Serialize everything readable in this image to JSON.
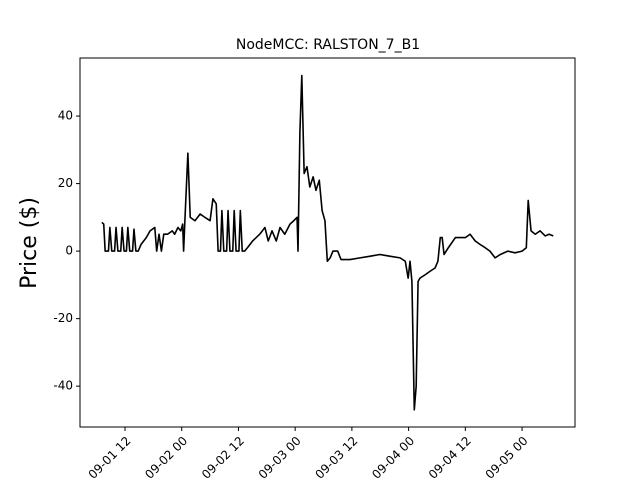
{
  "chart_data": {
    "type": "line",
    "title": "NodeMCC: RALSTON_7_B1",
    "y_label": "Price ($)",
    "color": "#000000",
    "x": [
      7.1,
      7.5,
      7.8,
      8.5,
      8.8,
      9.2,
      9.8,
      10.1,
      10.5,
      11.1,
      11.4,
      11.8,
      12.3,
      12.6,
      13,
      13.6,
      13.9,
      14.3,
      14.8,
      15.4,
      16.5,
      17.3,
      18.3,
      18.7,
      19.2,
      19.7,
      20.2,
      21,
      22,
      22.5,
      23.2,
      23.8,
      24.2,
      24.4,
      24.7,
      25.3,
      25.8,
      26.8,
      27.9,
      28.9,
      30,
      30.6,
      31.3,
      31.7,
      32.2,
      32.5,
      32.9,
      33.5,
      33.8,
      34.2,
      34.8,
      35.1,
      35.5,
      36.1,
      36.4,
      36.8,
      37.3,
      37.9,
      39,
      40.5,
      41.6,
      42.3,
      43.1,
      44,
      44.8,
      45.8,
      46.9,
      47.7,
      48.4,
      48.6,
      49,
      49.4,
      49.9,
      50.5,
      51.1,
      51.8,
      52.4,
      53.1,
      53.7,
      54.3,
      54.8,
      55.4,
      56,
      57,
      57.7,
      59.6,
      61.7,
      63.9,
      65.9,
      68,
      70.2,
      71.3,
      71.9,
      72.3,
      72.7,
      73.2,
      73.6,
      74,
      74.4,
      75.5,
      76.5,
      77.6,
      78.2,
      78.7,
      79.1,
      79.5,
      80.4,
      81.9,
      84,
      85,
      86.1,
      87.1,
      88.2,
      89.2,
      90.3,
      91.4,
      93,
      94.5,
      96,
      96.9,
      97.3,
      97.9,
      98.8,
      99.8,
      100.9,
      101.7,
      102.6
    ],
    "values": [
      8.5,
      8,
      0,
      0,
      7,
      0,
      0,
      7,
      0,
      0,
      7,
      0,
      0,
      7,
      0,
      0,
      6.5,
      0,
      0,
      2,
      4,
      6,
      7,
      0,
      5,
      0,
      5,
      5,
      6,
      5,
      7,
      6,
      8,
      0,
      10,
      29,
      10,
      9,
      11,
      10,
      9,
      15.5,
      14,
      0,
      0,
      12,
      0,
      0,
      12,
      0,
      0,
      12,
      0,
      0,
      12,
      0,
      0,
      1,
      3,
      5,
      7,
      3,
      6,
      3,
      7,
      5,
      8,
      9,
      10,
      0,
      35,
      52,
      23,
      25,
      19,
      22,
      18,
      21,
      12,
      9,
      -3,
      -2,
      0,
      0,
      -2.5,
      -2.5,
      -2,
      -1.5,
      -1,
      -1.5,
      -2,
      -3,
      -8,
      -3,
      -9,
      -47,
      -40,
      -9,
      -8,
      -7,
      -6,
      -5,
      -3,
      4,
      4,
      -1,
      1,
      4,
      4,
      5,
      3,
      2,
      1,
      0,
      -2,
      -1,
      0,
      -0.5,
      0,
      1,
      15,
      6,
      5,
      6,
      4.5,
      5,
      4.5
    ],
    "xlim": [
      2.48,
      107.2
    ],
    "xticks": [
      {
        "value": 12,
        "label": "09-01 12"
      },
      {
        "value": 24,
        "label": "09-02 00"
      },
      {
        "value": 36,
        "label": "09-02 12"
      },
      {
        "value": 48,
        "label": "09-03 00"
      },
      {
        "value": 60,
        "label": "09-03 12"
      },
      {
        "value": 72,
        "label": "09-04 00"
      },
      {
        "value": 84,
        "label": "09-04 12"
      },
      {
        "value": 96,
        "label": "09-05 00"
      }
    ],
    "ylim": [
      -52.1,
      57.2
    ],
    "yticks": [
      -40,
      -20,
      0,
      20,
      40
    ]
  }
}
